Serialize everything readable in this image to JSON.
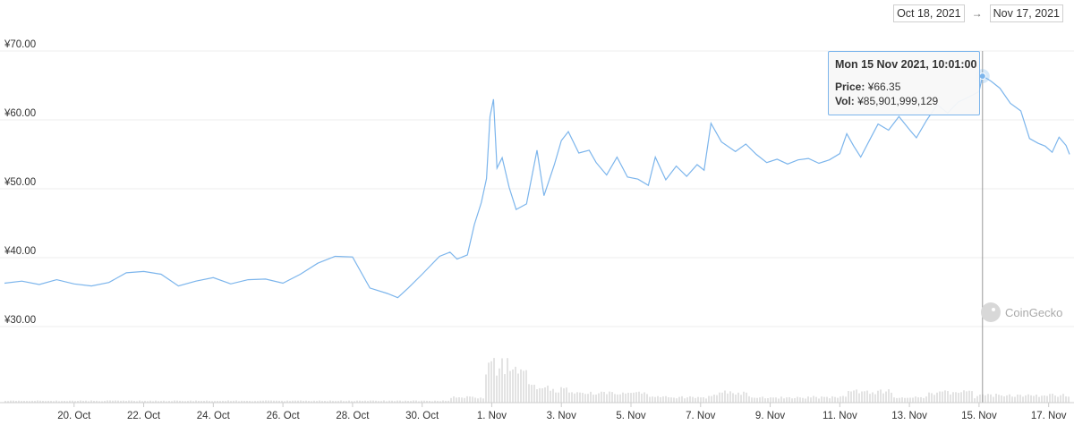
{
  "range": {
    "from": "Oct 18, 2021",
    "to": "Nov 17, 2021",
    "arrow": "→"
  },
  "tooltip": {
    "title": "Mon 15 Nov 2021, 10:01:00",
    "price_label": "Price:",
    "price_value": "¥66.35",
    "vol_label": "Vol:",
    "vol_value": "¥85,901,999,129"
  },
  "watermark": "CoinGecko",
  "chart_data": {
    "type": "line",
    "y_ticks": [
      "¥70.00",
      "¥60.00",
      "¥50.00",
      "¥40.00",
      "¥30.00"
    ],
    "y_tick_values": [
      70,
      60,
      50,
      40,
      30
    ],
    "ylim": [
      30,
      70
    ],
    "x_ticks": [
      "20. Oct",
      "22. Oct",
      "24. Oct",
      "26. Oct",
      "28. Oct",
      "30. Oct",
      "1. Nov",
      "3. Nov",
      "5. Nov",
      "7. Nov",
      "9. Nov",
      "11. Nov",
      "13. Nov",
      "15. Nov",
      "17. Nov"
    ],
    "x_tick_days": [
      2,
      4,
      6,
      8,
      10,
      12,
      14,
      16,
      18,
      20,
      22,
      24,
      26,
      28,
      30
    ],
    "xlim_days": [
      0,
      30.6
    ],
    "grid": true,
    "series_color": "#7cb5ec",
    "price": [
      [
        0.0,
        36.3
      ],
      [
        0.5,
        36.6
      ],
      [
        1.0,
        36.1
      ],
      [
        1.5,
        36.8
      ],
      [
        2.0,
        36.2
      ],
      [
        2.5,
        35.9
      ],
      [
        3.0,
        36.4
      ],
      [
        3.5,
        37.8
      ],
      [
        4.0,
        38.0
      ],
      [
        4.5,
        37.6
      ],
      [
        5.0,
        35.9
      ],
      [
        5.5,
        36.6
      ],
      [
        6.0,
        37.1
      ],
      [
        6.5,
        36.2
      ],
      [
        7.0,
        36.8
      ],
      [
        7.5,
        36.9
      ],
      [
        8.0,
        36.3
      ],
      [
        8.5,
        37.6
      ],
      [
        9.0,
        39.2
      ],
      [
        9.5,
        40.2
      ],
      [
        10.0,
        40.1
      ],
      [
        10.5,
        35.6
      ],
      [
        11.0,
        34.8
      ],
      [
        11.3,
        34.2
      ],
      [
        11.6,
        35.6
      ],
      [
        12.0,
        37.6
      ],
      [
        12.5,
        40.2
      ],
      [
        12.8,
        40.8
      ],
      [
        13.0,
        39.8
      ],
      [
        13.3,
        40.4
      ],
      [
        13.5,
        44.8
      ],
      [
        13.7,
        48.0
      ],
      [
        13.85,
        51.5
      ],
      [
        13.95,
        60.5
      ],
      [
        14.05,
        63.0
      ],
      [
        14.15,
        53.0
      ],
      [
        14.3,
        54.5
      ],
      [
        14.5,
        50.2
      ],
      [
        14.7,
        47.0
      ],
      [
        15.0,
        47.8
      ],
      [
        15.3,
        55.6
      ],
      [
        15.5,
        49.0
      ],
      [
        15.8,
        53.5
      ],
      [
        16.0,
        57.0
      ],
      [
        16.2,
        58.3
      ],
      [
        16.5,
        55.2
      ],
      [
        16.8,
        55.6
      ],
      [
        17.0,
        53.8
      ],
      [
        17.3,
        52.0
      ],
      [
        17.6,
        54.6
      ],
      [
        17.9,
        51.7
      ],
      [
        18.2,
        51.4
      ],
      [
        18.5,
        50.5
      ],
      [
        18.7,
        54.6
      ],
      [
        19.0,
        51.3
      ],
      [
        19.3,
        53.3
      ],
      [
        19.6,
        51.8
      ],
      [
        19.9,
        53.5
      ],
      [
        20.1,
        52.7
      ],
      [
        20.3,
        59.5
      ],
      [
        20.6,
        56.8
      ],
      [
        21.0,
        55.4
      ],
      [
        21.3,
        56.5
      ],
      [
        21.6,
        55.0
      ],
      [
        21.9,
        53.8
      ],
      [
        22.2,
        54.3
      ],
      [
        22.5,
        53.6
      ],
      [
        22.8,
        54.2
      ],
      [
        23.1,
        54.4
      ],
      [
        23.4,
        53.7
      ],
      [
        23.7,
        54.2
      ],
      [
        24.0,
        55.1
      ],
      [
        24.2,
        58.0
      ],
      [
        24.4,
        56.2
      ],
      [
        24.6,
        54.6
      ],
      [
        24.9,
        57.5
      ],
      [
        25.1,
        59.4
      ],
      [
        25.4,
        58.5
      ],
      [
        25.7,
        60.5
      ],
      [
        26.0,
        58.6
      ],
      [
        26.2,
        57.4
      ],
      [
        26.5,
        60.0
      ],
      [
        26.8,
        62.2
      ],
      [
        27.1,
        61.0
      ],
      [
        27.4,
        62.6
      ],
      [
        27.7,
        63.3
      ],
      [
        28.0,
        64.1
      ],
      [
        28.1,
        66.4
      ],
      [
        28.35,
        65.6
      ],
      [
        28.6,
        64.6
      ],
      [
        28.9,
        62.4
      ],
      [
        29.2,
        61.3
      ],
      [
        29.45,
        57.3
      ],
      [
        29.7,
        56.6
      ],
      [
        29.9,
        56.2
      ],
      [
        30.1,
        55.3
      ],
      [
        30.3,
        57.5
      ],
      [
        30.5,
        56.3
      ],
      [
        30.6,
        55.0
      ]
    ],
    "highlight": {
      "day": 28.1,
      "price": 66.35
    }
  }
}
